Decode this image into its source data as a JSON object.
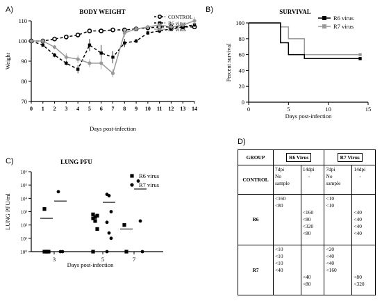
{
  "panels": {
    "a": "A)",
    "b": "B)",
    "c": "C)",
    "d": "D)"
  },
  "chart_data": [
    {
      "id": "body-weight",
      "type": "line",
      "title": "BODY WEIGHT",
      "xlabel": "Days post-infection",
      "ylabel": "Weight",
      "xlim": [
        0,
        14
      ],
      "ylim": [
        70,
        110
      ],
      "yticks": [
        70,
        80,
        90,
        100,
        110
      ],
      "xticks": [
        0,
        1,
        2,
        3,
        4,
        5,
        6,
        7,
        8,
        9,
        10,
        11,
        12,
        13,
        14
      ],
      "legend_position": "top-right",
      "series": [
        {
          "name": "CONTROL",
          "color": "#000000",
          "dash": "dashed",
          "marker": "open-circle",
          "x": [
            0,
            1,
            2,
            3,
            4,
            5,
            6,
            7,
            8,
            9,
            10,
            11,
            12,
            13,
            14
          ],
          "values": [
            100,
            100,
            101,
            102,
            103,
            105,
            105,
            105.5,
            105.5,
            106,
            106.5,
            107,
            107,
            107,
            107
          ]
        },
        {
          "name": "R6 virus",
          "color": "#000000",
          "dash": "dashed",
          "marker": "filled-square",
          "x": [
            0,
            1,
            2,
            3,
            4,
            5,
            6,
            7,
            8,
            9,
            10,
            11,
            12,
            13,
            14
          ],
          "values": [
            100,
            98,
            93,
            89,
            86,
            98,
            94,
            92,
            99,
            100,
            104,
            105,
            106,
            107,
            108
          ],
          "errors": [
            0,
            1,
            1,
            1,
            2,
            3,
            4,
            3,
            2,
            1,
            1,
            1,
            1,
            1,
            1
          ]
        },
        {
          "name": "R7 virus",
          "color": "#999999",
          "dash": "solid",
          "marker": "filled-circle",
          "x": [
            0,
            1,
            2,
            3,
            4,
            5,
            6,
            7,
            8,
            9,
            10,
            11,
            12,
            13,
            14
          ],
          "values": [
            100,
            100,
            97,
            92,
            91,
            89,
            89,
            84,
            104,
            106,
            107,
            108,
            107,
            108,
            110
          ],
          "errors": [
            0,
            1,
            1,
            2,
            2,
            2,
            3,
            2,
            2,
            1,
            1,
            1,
            1,
            1,
            2
          ]
        }
      ]
    },
    {
      "id": "survival",
      "type": "line",
      "title": "SURVIVAL",
      "xlabel": "Days post-infection",
      "ylabel": "Percent survival",
      "xlim": [
        0,
        15
      ],
      "ylim": [
        0,
        100
      ],
      "yticks": [
        0,
        20,
        40,
        60,
        80,
        100
      ],
      "xticks": [
        0,
        5,
        10,
        15
      ],
      "legend_position": "top-right",
      "series": [
        {
          "name": "R6 virus",
          "color": "#000000",
          "step": true,
          "x": [
            0,
            4,
            4,
            5,
            5,
            7,
            7,
            14
          ],
          "values": [
            100,
            100,
            75,
            75,
            60,
            60,
            55,
            55
          ]
        },
        {
          "name": "R7 virus",
          "color": "#999999",
          "step": true,
          "x": [
            0,
            4,
            4,
            5,
            5,
            7,
            7,
            14
          ],
          "values": [
            100,
            100,
            95,
            95,
            80,
            80,
            60,
            60
          ]
        }
      ]
    },
    {
      "id": "lung-pfu",
      "type": "scatter",
      "title": "LUNG PFU",
      "xlabel": "Days post-infection",
      "ylabel": "LUNG PFU/ml",
      "yscale": "log",
      "ylim": [
        0,
        6
      ],
      "yticks": [
        "10⁰",
        "10¹",
        "10²",
        "10³",
        "10⁴",
        "10⁵",
        "10⁶"
      ],
      "categories": [
        "3",
        "5",
        "7"
      ],
      "legend_position": "top-right",
      "series": [
        {
          "name": "R6 virus",
          "marker": "filled-square",
          "points": [
            [
              3,
              3.2
            ],
            [
              3,
              0
            ],
            [
              3,
              0
            ],
            [
              3,
              0
            ],
            [
              3,
              0
            ],
            [
              5,
              2.8
            ],
            [
              5,
              2.6
            ],
            [
              5,
              2.7
            ],
            [
              5,
              2.5
            ],
            [
              5,
              2.3
            ],
            [
              5,
              1.7
            ],
            [
              5,
              0
            ],
            [
              7,
              2.0
            ],
            [
              7,
              0
            ]
          ],
          "means": [
            {
              "x": 3,
              "value": 2.5
            },
            {
              "x": 7,
              "value": 1.7
            }
          ]
        },
        {
          "name": "R7 virus",
          "marker": "filled-circle",
          "points": [
            [
              3,
              4.5
            ],
            [
              3,
              0
            ],
            [
              3,
              0
            ],
            [
              5,
              4.3
            ],
            [
              5,
              4.2
            ],
            [
              5,
              3.0
            ],
            [
              5,
              2.2
            ],
            [
              5,
              1.4
            ],
            [
              5,
              1.0
            ],
            [
              5,
              0
            ],
            [
              7,
              5.3
            ],
            [
              7,
              2.3
            ],
            [
              7,
              0
            ]
          ],
          "means": [
            {
              "x": 3,
              "value": 3.8
            },
            {
              "x": 5,
              "value": 3.7
            },
            {
              "x": 7,
              "value": 4.7
            }
          ]
        }
      ]
    }
  ],
  "table": {
    "group_header": "GROUP",
    "r6_header": "R6 Virus",
    "r7_header": "R7 Virus",
    "control": {
      "label": "CONTROL",
      "r6_7dpi": [
        "7dpi",
        "No",
        "sample"
      ],
      "r6_14dpi": [
        "14dpi",
        "-"
      ],
      "r7_7dpi": [
        "7dpi",
        "No",
        "sample"
      ],
      "r7_14dpi": [
        "14dpi",
        "-"
      ]
    },
    "r6": {
      "label": "R6",
      "r6_7dpi": [
        "<160",
        "<80",
        "",
        "",
        "",
        ""
      ],
      "r6_14dpi": [
        "",
        "",
        "<160",
        "<80",
        "<320",
        "<80"
      ],
      "r7_7dpi": [
        "<10",
        "<10",
        "",
        "",
        "",
        ""
      ],
      "r7_14dpi": [
        "",
        "",
        "<40",
        "<40",
        "<40",
        "<40"
      ]
    },
    "r7": {
      "label": "R7",
      "r6_7dpi": [
        "<10",
        "<10",
        "<10",
        "<40",
        "",
        ""
      ],
      "r6_14dpi": [
        "",
        "",
        "",
        "",
        "<40",
        "<80"
      ],
      "r7_7dpi": [
        "<20",
        "<40",
        "<40",
        "<160",
        "",
        ""
      ],
      "r7_14dpi": [
        "",
        "",
        "",
        "",
        "<80",
        "<320"
      ]
    }
  }
}
